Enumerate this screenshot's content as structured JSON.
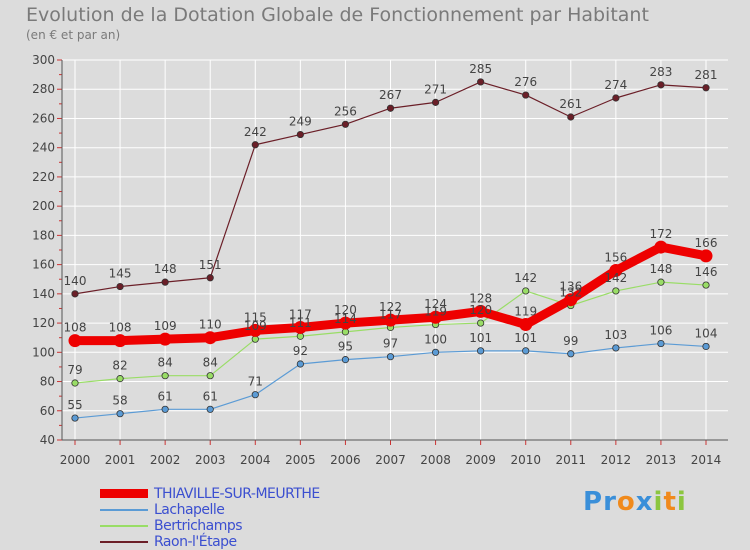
{
  "header": {
    "title": "Evolution de la Dotation Globale de Fonctionnement par Habitant",
    "subtitle": "(en € et par an)"
  },
  "colors": {
    "background": "#dcdcdc",
    "grid": "#ffffff",
    "axis": "#555555",
    "label_text": "#444444",
    "legend_text": "#3b4fd0"
  },
  "logo": {
    "letters": [
      {
        "char": "P",
        "color": "#3a8fd9"
      },
      {
        "char": "r",
        "color": "#3a8fd9"
      },
      {
        "char": "o",
        "color": "#f08a1c"
      },
      {
        "char": "x",
        "color": "#3a8fd9"
      },
      {
        "char": "i",
        "color": "#8cc63f"
      },
      {
        "char": "t",
        "color": "#f08a1c"
      },
      {
        "char": "i",
        "color": "#8cc63f"
      }
    ]
  },
  "chart_data": {
    "type": "line",
    "title": "Evolution de la Dotation Globale de Fonctionnement par Habitant",
    "subtitle": "(en € et par an)",
    "xlabel": "",
    "ylabel": "",
    "x": [
      2000,
      2001,
      2002,
      2003,
      2004,
      2005,
      2006,
      2007,
      2008,
      2009,
      2010,
      2011,
      2012,
      2013,
      2014
    ],
    "ylim": [
      40,
      300
    ],
    "yticks": [
      40,
      60,
      80,
      100,
      120,
      140,
      160,
      180,
      200,
      220,
      240,
      260,
      280,
      300
    ],
    "grid": true,
    "legend_position": "bottom-left",
    "series": [
      {
        "name": "Raon-l'Étape",
        "color": "#6b1f28",
        "emphasis": false,
        "values": [
          140,
          145,
          148,
          151,
          242,
          249,
          256,
          267,
          271,
          285,
          276,
          261,
          274,
          283,
          281
        ]
      },
      {
        "name": "Bertrichamps",
        "color": "#99dd66",
        "emphasis": false,
        "values": [
          79,
          82,
          84,
          84,
          109,
          111,
          114,
          117,
          119,
          120,
          142,
          132,
          142,
          148,
          146
        ]
      },
      {
        "name": "Lachapelle",
        "color": "#5b9bd5",
        "emphasis": false,
        "values": [
          55,
          58,
          61,
          61,
          71,
          92,
          95,
          97,
          100,
          101,
          101,
          99,
          103,
          106,
          104
        ]
      },
      {
        "name": "THIAVILLE-SUR-MEURTHE",
        "color": "#ee0000",
        "emphasis": true,
        "values": [
          108,
          108,
          109,
          110,
          115,
          117,
          120,
          122,
          124,
          128,
          119,
          136,
          156,
          172,
          166
        ]
      }
    ],
    "legend_order": [
      "THIAVILLE-SUR-MEURTHE",
      "Lachapelle",
      "Bertrichamps",
      "Raon-l'Étape"
    ]
  }
}
